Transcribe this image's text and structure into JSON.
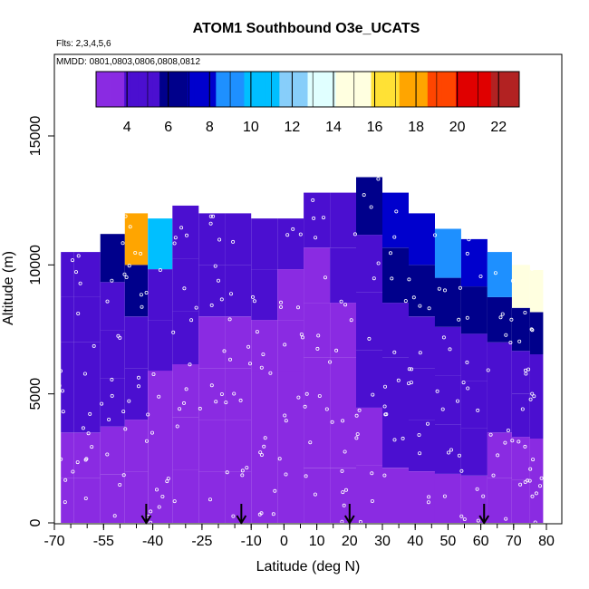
{
  "chart_data": {
    "type": "heatmap",
    "title": "ATOM1 Southbound O3e_UCATS",
    "subtitle_flights": "Flts: 2,3,4,5,6",
    "subtitle_dates": "MMDD: 0801,0803,0806,0808,0812",
    "xlabel": "Latitude (deg N)",
    "ylabel": "Altitude (m)",
    "xlim": [
      -70,
      80
    ],
    "ylim": [
      0,
      17500
    ],
    "x_ticks": [
      "-70",
      "-55",
      "-40",
      "-25",
      "-10",
      "0",
      "10",
      "20",
      "30",
      "40",
      "50",
      "60",
      "70",
      "80"
    ],
    "y_ticks": [
      "0",
      "5000",
      "10000",
      "15000"
    ],
    "colorbar": {
      "range": [
        2.5,
        23
      ],
      "ticks": [
        "4",
        "6",
        "8",
        "10",
        "12",
        "14",
        "16",
        "18",
        "20",
        "22"
      ],
      "colors": [
        "#8a2be2",
        "#4b0fd0",
        "#00008b",
        "#0000cd",
        "#1e90ff",
        "#00bfff",
        "#87cefa",
        "#e0ffff",
        "#ffffe0",
        "#ffe135",
        "#ffa500",
        "#ff4500",
        "#e00000",
        "#b22222"
      ]
    },
    "arrow_latitudes": [
      -42,
      -13,
      20,
      61
    ],
    "columns": [
      {
        "lat": -68,
        "top": 10500,
        "values": [
          3.5,
          3.8,
          4.0,
          4.2,
          4.5,
          4.6
        ]
      },
      {
        "lat": -60,
        "top": 10500,
        "values": [
          3.4,
          3.8,
          4.2,
          4.4,
          4.8,
          5.0
        ]
      },
      {
        "lat": -52,
        "top": 11200,
        "values": [
          3.3,
          3.6,
          4.0,
          4.5,
          5.0,
          6.5
        ]
      },
      {
        "lat": -45,
        "top": 12000,
        "values": [
          3.2,
          3.6,
          4.0,
          4.6,
          5.5,
          18.0
        ]
      },
      {
        "lat": -38,
        "top": 11800,
        "values": [
          3.0,
          3.4,
          3.8,
          4.4,
          5.2,
          10.0
        ]
      },
      {
        "lat": -30,
        "top": 12300,
        "values": [
          3.0,
          3.2,
          3.6,
          4.0,
          4.6,
          5.2
        ]
      },
      {
        "lat": -22,
        "top": 12000,
        "values": [
          2.8,
          3.0,
          3.2,
          3.6,
          4.2,
          4.8
        ]
      },
      {
        "lat": -14,
        "top": 12000,
        "values": [
          2.8,
          3.0,
          3.2,
          3.6,
          4.0,
          4.6
        ]
      },
      {
        "lat": -6,
        "top": 11800,
        "values": [
          2.8,
          3.0,
          3.2,
          3.4,
          4.0,
          4.4
        ]
      },
      {
        "lat": 2,
        "top": 11800,
        "values": [
          2.8,
          2.9,
          3.1,
          3.4,
          3.8,
          4.2
        ]
      },
      {
        "lat": 10,
        "top": 12800,
        "values": [
          2.6,
          2.8,
          3.0,
          3.4,
          3.8,
          4.4
        ]
      },
      {
        "lat": 18,
        "top": 12800,
        "values": [
          2.8,
          3.0,
          3.4,
          3.8,
          4.4,
          5.0
        ]
      },
      {
        "lat": 26,
        "top": 13400,
        "values": [
          3.2,
          3.6,
          4.0,
          4.6,
          5.2,
          6.0
        ]
      },
      {
        "lat": 34,
        "top": 12800,
        "values": [
          3.6,
          4.0,
          4.6,
          5.2,
          6.0,
          7.5
        ]
      },
      {
        "lat": 42,
        "top": 12000,
        "values": [
          3.8,
          4.2,
          4.8,
          5.4,
          6.2,
          8.0
        ]
      },
      {
        "lat": 50,
        "top": 11400,
        "values": [
          3.8,
          4.2,
          4.8,
          5.4,
          6.5,
          8.5
        ]
      },
      {
        "lat": 58,
        "top": 11000,
        "values": [
          3.6,
          4.0,
          4.6,
          5.2,
          6.2,
          8.0
        ]
      },
      {
        "lat": 66,
        "top": 10500,
        "values": [
          3.4,
          3.8,
          4.4,
          5.0,
          6.0,
          9.0
        ]
      },
      {
        "lat": 73,
        "top": 10000,
        "values": [
          3.2,
          3.6,
          4.2,
          4.8,
          5.6,
          15.0
        ]
      },
      {
        "lat": 77,
        "top": 9800,
        "values": [
          3.2,
          3.6,
          4.2,
          4.8,
          5.6,
          15.5
        ]
      }
    ]
  }
}
